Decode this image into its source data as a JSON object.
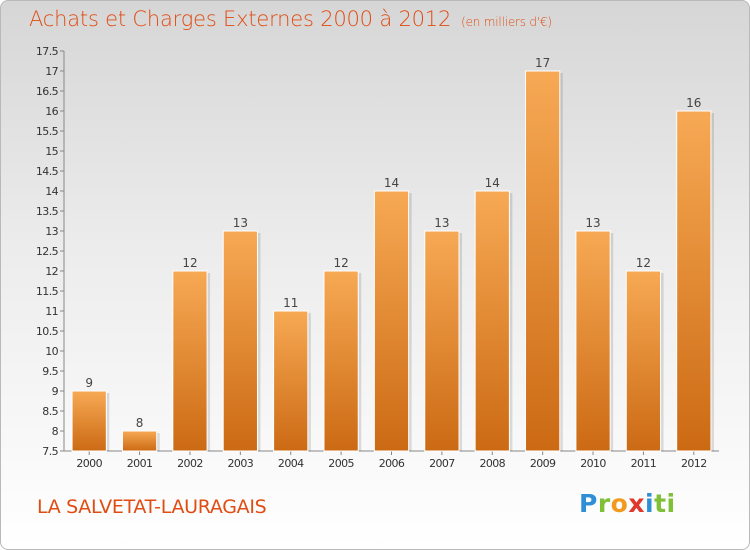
{
  "page": {
    "title": "Achats et Charges Externes 2000 à 2012",
    "subtitle": "(en milliers d'€)",
    "town": "LA SALVETAT-LAURAGAIS",
    "logo": [
      "P",
      "r",
      "o",
      "x",
      "i",
      "ti"
    ]
  },
  "colors": {
    "title": "#e04c12",
    "bar_top": "#f7a954",
    "bar_bottom": "#cc6a14",
    "axis": "#888888"
  },
  "chart_data": {
    "type": "bar",
    "title": "Achats et Charges Externes 2000 à 2012",
    "subtitle": "(en milliers d'€)",
    "xlabel": "",
    "ylabel": "",
    "ylim": [
      7.5,
      17.5
    ],
    "yticks": [
      "7.5",
      "8",
      "8.5",
      "9",
      "9.5",
      "10",
      "10.5",
      "11",
      "11.5",
      "12",
      "12.5",
      "13",
      "13.5",
      "14",
      "14.5",
      "15",
      "15.5",
      "16",
      "16.5",
      "17",
      "17.5"
    ],
    "categories": [
      "2000",
      "2001",
      "2002",
      "2003",
      "2004",
      "2005",
      "2006",
      "2007",
      "2008",
      "2009",
      "2010",
      "2011",
      "2012"
    ],
    "values": [
      9,
      8,
      12,
      13,
      11,
      12,
      14,
      13,
      14,
      17,
      13,
      12,
      16
    ],
    "grid": false,
    "legend": "none"
  }
}
